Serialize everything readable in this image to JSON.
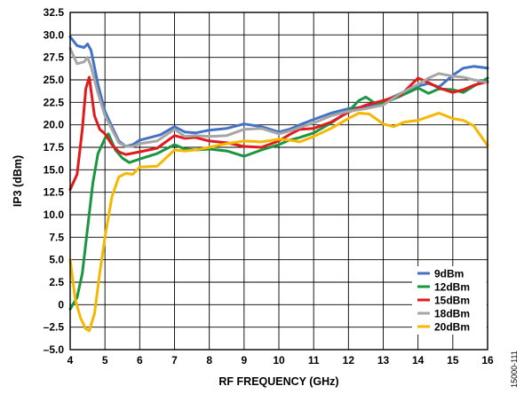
{
  "chart_data": {
    "type": "line",
    "title": "",
    "xlabel": "RF FREQUENCY (GHz)",
    "ylabel": "IP3 (dBm)",
    "xlim": [
      4,
      16
    ],
    "ylim": [
      -5,
      32.5
    ],
    "x_ticks": [
      "4",
      "5",
      "6",
      "7",
      "8",
      "9",
      "10",
      "11",
      "12",
      "13",
      "14",
      "15",
      "16"
    ],
    "y_ticks": [
      "32.5",
      "30.0",
      "27.5",
      "25.0",
      "22.5",
      "20.0",
      "17.5",
      "15.0",
      "12.5",
      "10.0",
      "7.5",
      "5.0",
      "2.5",
      "0",
      "–2.5",
      "–5.0"
    ],
    "grid": true,
    "legend_position": "bottom-right",
    "figure_id": "15000-111",
    "series": [
      {
        "name": "9dBm",
        "color": "#4472C4",
        "points": [
          [
            4,
            29.8
          ],
          [
            4.2,
            28.8
          ],
          [
            4.4,
            28.6
          ],
          [
            4.5,
            29.0
          ],
          [
            4.6,
            28.3
          ],
          [
            4.8,
            24.5
          ],
          [
            5,
            21.5
          ],
          [
            5.2,
            19.8
          ],
          [
            5.4,
            18.2
          ],
          [
            5.6,
            17.6
          ],
          [
            5.8,
            17.8
          ],
          [
            6,
            18.3
          ],
          [
            6.3,
            18.6
          ],
          [
            6.6,
            18.9
          ],
          [
            7,
            19.8
          ],
          [
            7.3,
            19.2
          ],
          [
            7.6,
            19.1
          ],
          [
            8,
            19.4
          ],
          [
            8.5,
            19.6
          ],
          [
            9,
            20.1
          ],
          [
            9.5,
            19.8
          ],
          [
            10,
            19.2
          ],
          [
            10.3,
            19.5
          ],
          [
            10.6,
            20.0
          ],
          [
            11,
            20.6
          ],
          [
            11.5,
            21.3
          ],
          [
            12,
            21.8
          ],
          [
            12.5,
            22.0
          ],
          [
            13,
            22.6
          ],
          [
            13.5,
            23.5
          ],
          [
            14,
            24.3
          ],
          [
            14.3,
            24.6
          ],
          [
            14.6,
            24.2
          ],
          [
            15,
            25.5
          ],
          [
            15.3,
            26.3
          ],
          [
            15.6,
            26.5
          ],
          [
            16,
            26.3
          ]
        ]
      },
      {
        "name": "12dBm",
        "color": "#1A9641",
        "points": [
          [
            4,
            -0.5
          ],
          [
            4.2,
            0.8
          ],
          [
            4.35,
            3.5
          ],
          [
            4.5,
            8.5
          ],
          [
            4.65,
            13.5
          ],
          [
            4.8,
            16.8
          ],
          [
            5,
            18.5
          ],
          [
            5.1,
            19.0
          ],
          [
            5.3,
            17.2
          ],
          [
            5.5,
            16.3
          ],
          [
            5.7,
            15.8
          ],
          [
            6,
            16.2
          ],
          [
            6.5,
            16.8
          ],
          [
            7,
            17.8
          ],
          [
            7.3,
            17.3
          ],
          [
            7.6,
            17.2
          ],
          [
            8,
            17.3
          ],
          [
            8.5,
            17.1
          ],
          [
            9,
            16.5
          ],
          [
            9.5,
            17.2
          ],
          [
            10,
            17.8
          ],
          [
            10.3,
            18.3
          ],
          [
            10.6,
            18.6
          ],
          [
            11,
            19.1
          ],
          [
            11.5,
            20.2
          ],
          [
            12,
            21.5
          ],
          [
            12.3,
            22.7
          ],
          [
            12.5,
            23.1
          ],
          [
            12.8,
            22.3
          ],
          [
            13,
            22.4
          ],
          [
            13.5,
            23.2
          ],
          [
            14,
            24.1
          ],
          [
            14.3,
            23.5
          ],
          [
            14.6,
            24.0
          ],
          [
            15,
            23.9
          ],
          [
            15.3,
            23.6
          ],
          [
            15.6,
            24.3
          ],
          [
            16,
            25.2
          ]
        ]
      },
      {
        "name": "15dBm",
        "color": "#E31A1C",
        "points": [
          [
            4,
            12.8
          ],
          [
            4.2,
            14.5
          ],
          [
            4.35,
            19.5
          ],
          [
            4.45,
            24.0
          ],
          [
            4.55,
            25.3
          ],
          [
            4.7,
            21.0
          ],
          [
            4.85,
            19.5
          ],
          [
            5,
            19.0
          ],
          [
            5.2,
            17.8
          ],
          [
            5.4,
            17.0
          ],
          [
            5.6,
            16.7
          ],
          [
            6,
            17.0
          ],
          [
            6.5,
            17.4
          ],
          [
            7,
            18.8
          ],
          [
            7.3,
            18.5
          ],
          [
            7.6,
            18.6
          ],
          [
            8,
            18.2
          ],
          [
            8.5,
            18.0
          ],
          [
            9,
            17.6
          ],
          [
            9.5,
            17.5
          ],
          [
            10,
            18.2
          ],
          [
            10.3,
            18.9
          ],
          [
            10.6,
            19.5
          ],
          [
            11,
            19.6
          ],
          [
            11.5,
            20.3
          ],
          [
            12,
            21.4
          ],
          [
            12.5,
            22.2
          ],
          [
            13,
            22.7
          ],
          [
            13.5,
            23.3
          ],
          [
            14,
            25.2
          ],
          [
            14.3,
            24.7
          ],
          [
            14.6,
            24.1
          ],
          [
            15,
            23.6
          ],
          [
            15.3,
            23.9
          ],
          [
            15.6,
            24.4
          ],
          [
            16,
            24.8
          ]
        ]
      },
      {
        "name": "18dBm",
        "color": "#A6A6A6",
        "points": [
          [
            4,
            28.5
          ],
          [
            4.2,
            26.8
          ],
          [
            4.4,
            27.0
          ],
          [
            4.5,
            27.5
          ],
          [
            4.6,
            26.5
          ],
          [
            4.8,
            23.5
          ],
          [
            5,
            21.0
          ],
          [
            5.2,
            19.5
          ],
          [
            5.4,
            18.0
          ],
          [
            5.6,
            17.6
          ],
          [
            5.8,
            17.6
          ],
          [
            6,
            17.9
          ],
          [
            6.5,
            18.2
          ],
          [
            7,
            19.5
          ],
          [
            7.3,
            18.7
          ],
          [
            7.6,
            18.8
          ],
          [
            8,
            18.7
          ],
          [
            8.5,
            18.8
          ],
          [
            9,
            19.5
          ],
          [
            9.5,
            19.6
          ],
          [
            10,
            19.0
          ],
          [
            10.3,
            19.3
          ],
          [
            10.6,
            19.7
          ],
          [
            11,
            20.2
          ],
          [
            11.5,
            21.0
          ],
          [
            12,
            21.5
          ],
          [
            12.5,
            21.8
          ],
          [
            13,
            22.2
          ],
          [
            13.5,
            23.5
          ],
          [
            14,
            24.5
          ],
          [
            14.3,
            25.2
          ],
          [
            14.6,
            25.7
          ],
          [
            15,
            25.4
          ],
          [
            15.3,
            25.3
          ],
          [
            15.6,
            25.0
          ],
          [
            16,
            24.7
          ]
        ]
      },
      {
        "name": "20dBm",
        "color": "#F5B800",
        "points": [
          [
            4,
            5.0
          ],
          [
            4.15,
            0.5
          ],
          [
            4.3,
            -1.5
          ],
          [
            4.45,
            -2.7
          ],
          [
            4.55,
            -2.9
          ],
          [
            4.7,
            -1.0
          ],
          [
            4.85,
            3.5
          ],
          [
            5,
            7.5
          ],
          [
            5.2,
            12.0
          ],
          [
            5.4,
            14.2
          ],
          [
            5.6,
            14.6
          ],
          [
            5.8,
            14.5
          ],
          [
            6,
            15.3
          ],
          [
            6.5,
            15.4
          ],
          [
            7,
            17.2
          ],
          [
            7.3,
            17.1
          ],
          [
            7.6,
            17.2
          ],
          [
            8,
            17.5
          ],
          [
            8.5,
            17.9
          ],
          [
            9,
            18.2
          ],
          [
            9.5,
            18.1
          ],
          [
            10,
            18.4
          ],
          [
            10.3,
            18.3
          ],
          [
            10.6,
            18.1
          ],
          [
            11,
            18.7
          ],
          [
            11.5,
            19.6
          ],
          [
            12,
            20.7
          ],
          [
            12.3,
            21.3
          ],
          [
            12.6,
            21.2
          ],
          [
            13,
            20.1
          ],
          [
            13.3,
            19.8
          ],
          [
            13.6,
            20.3
          ],
          [
            14,
            20.5
          ],
          [
            14.3,
            20.9
          ],
          [
            14.6,
            21.3
          ],
          [
            15,
            20.7
          ],
          [
            15.3,
            20.5
          ],
          [
            15.6,
            19.9
          ],
          [
            16,
            17.7
          ]
        ]
      }
    ]
  }
}
